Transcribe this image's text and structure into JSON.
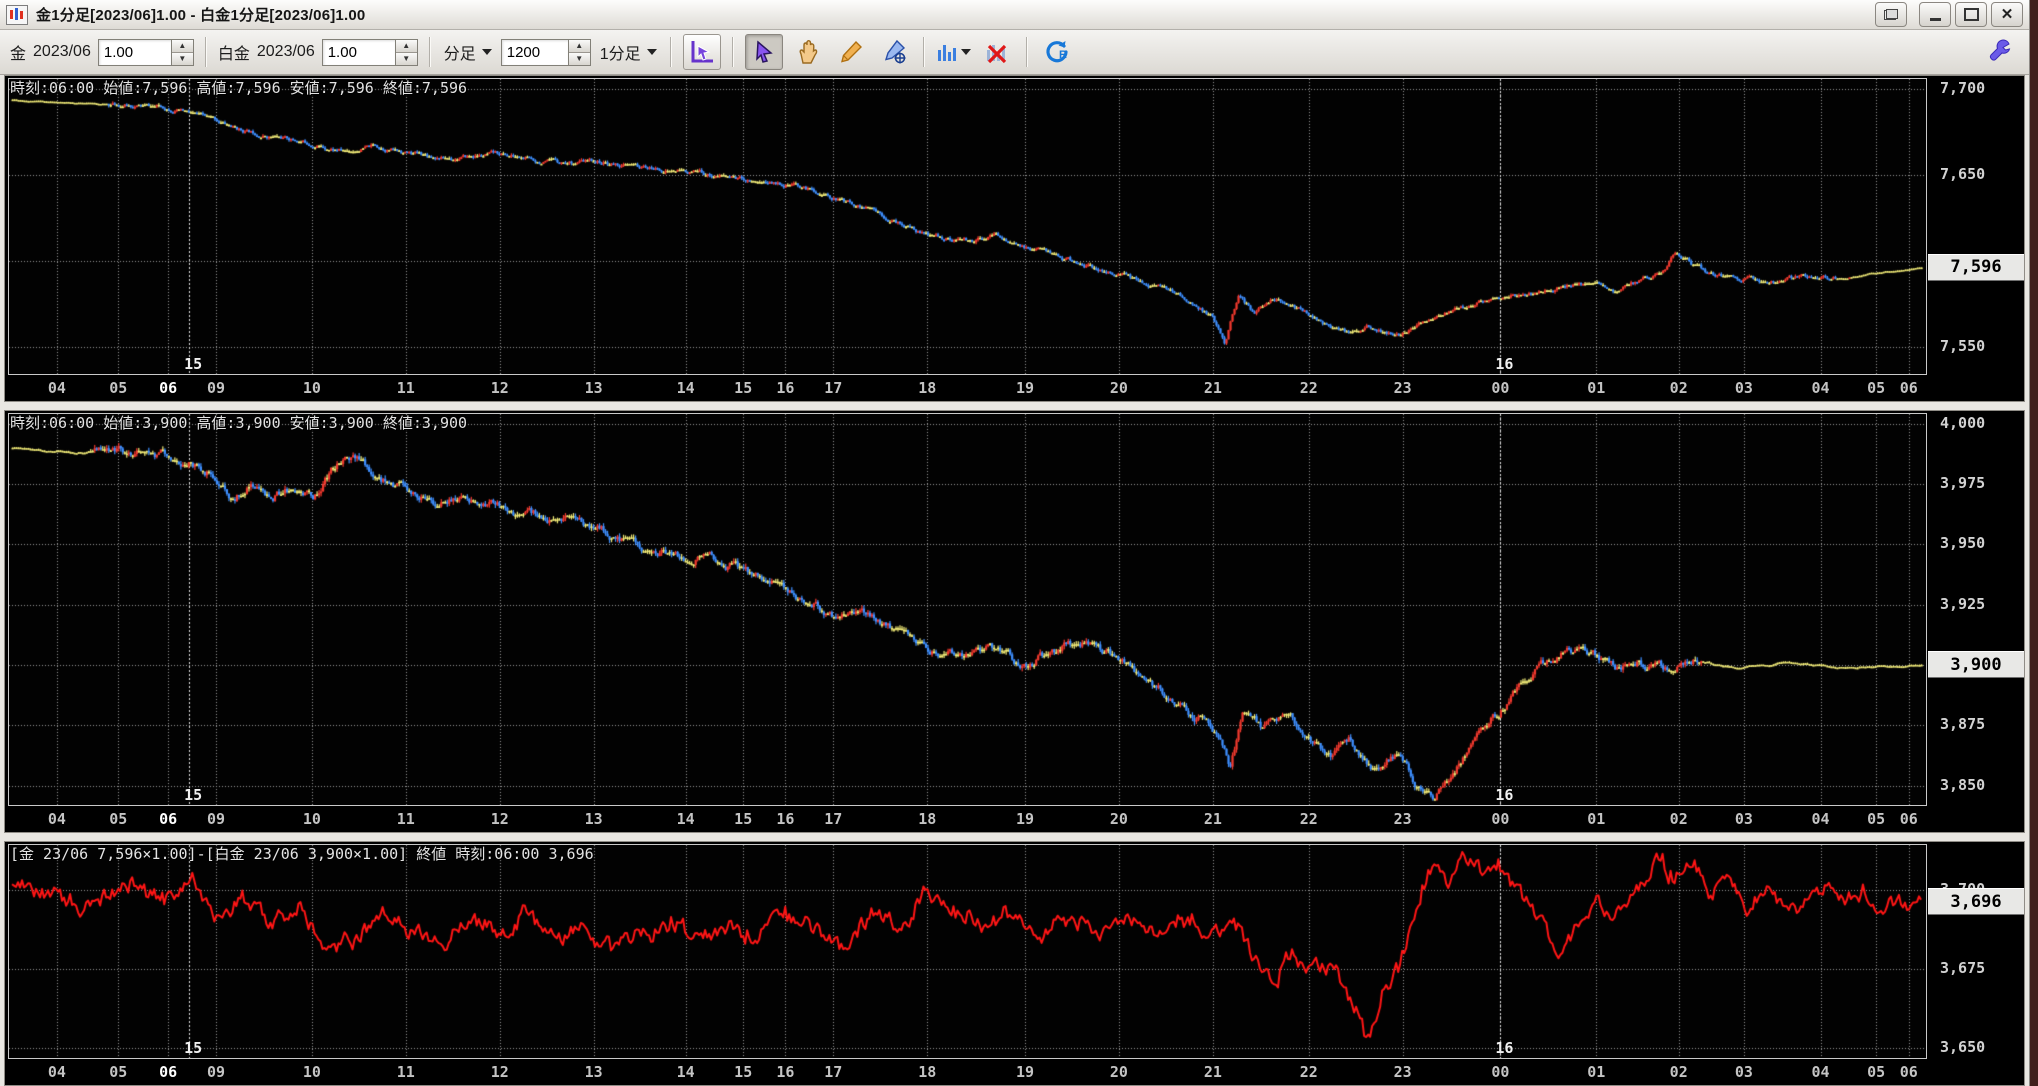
{
  "window": {
    "title": "金1分足[2023/06]1.00 - 白金1分足[2023/06]1.00",
    "buttons": {
      "cascade": "new-window",
      "minimize": "minimize",
      "maximize": "maximize",
      "close": "close"
    }
  },
  "toolbar": {
    "gold_label": "金",
    "gold_month": "2023/06",
    "gold_multiplier": "1.00",
    "platinum_label": "白金",
    "platinum_month": "2023/06",
    "platinum_multiplier": "1.00",
    "bar_type_label": "分足",
    "bar_count": "1200",
    "timeframe_label": "1分足",
    "tools": [
      "axis-cursor",
      "select-cursor",
      "pan-hand",
      "pencil-draw",
      "pen-target",
      "chart-style",
      "clear-chart",
      "reload"
    ],
    "accent_purple": "#6633cc",
    "accent_blue": "#2277dd",
    "accent_orange": "#e8a33c",
    "accent_red": "#e02020"
  },
  "chart_data": [
    {
      "type": "candlestick",
      "symbol": "金 2023/06",
      "info": "時刻:06:00 始値:7,596 高値:7,596 安値:7,596 終値:7,596",
      "open": 7596,
      "high": 7596,
      "low": 7596,
      "close": 7596,
      "price_label": "7,596",
      "price": 7596,
      "ylim": [
        7534,
        7706
      ],
      "yticks": [
        7700,
        7650,
        7600,
        7550
      ],
      "volatility": 2.4,
      "quiet": [
        [
          0,
          0.05
        ],
        [
          0.955,
          1.0
        ]
      ],
      "anchors": [
        [
          0.0,
          7694
        ],
        [
          0.03,
          7692
        ],
        [
          0.06,
          7691
        ],
        [
          0.083,
          7689
        ],
        [
          0.095,
          7685
        ],
        [
          0.108,
          7681
        ],
        [
          0.12,
          7676
        ],
        [
          0.14,
          7672
        ],
        [
          0.158,
          7668
        ],
        [
          0.175,
          7664
        ],
        [
          0.19,
          7667
        ],
        [
          0.207,
          7663
        ],
        [
          0.23,
          7660
        ],
        [
          0.256,
          7662
        ],
        [
          0.28,
          7657
        ],
        [
          0.305,
          7658
        ],
        [
          0.33,
          7654
        ],
        [
          0.353,
          7652
        ],
        [
          0.383,
          7648
        ],
        [
          0.405,
          7645
        ],
        [
          0.42,
          7641
        ],
        [
          0.43,
          7637
        ],
        [
          0.45,
          7630
        ],
        [
          0.465,
          7622
        ],
        [
          0.479,
          7615
        ],
        [
          0.5,
          7611
        ],
        [
          0.515,
          7615
        ],
        [
          0.53,
          7607
        ],
        [
          0.545,
          7604
        ],
        [
          0.56,
          7598
        ],
        [
          0.579,
          7592
        ],
        [
          0.6,
          7585
        ],
        [
          0.615,
          7577
        ],
        [
          0.628,
          7568
        ],
        [
          0.635,
          7552
        ],
        [
          0.642,
          7580
        ],
        [
          0.65,
          7570
        ],
        [
          0.66,
          7577
        ],
        [
          0.678,
          7570
        ],
        [
          0.69,
          7562
        ],
        [
          0.7,
          7558
        ],
        [
          0.71,
          7562
        ],
        [
          0.727,
          7556
        ],
        [
          0.74,
          7565
        ],
        [
          0.755,
          7572
        ],
        [
          0.778,
          7578
        ],
        [
          0.8,
          7583
        ],
        [
          0.82,
          7586
        ],
        [
          0.84,
          7583
        ],
        [
          0.852,
          7588
        ],
        [
          0.865,
          7594
        ],
        [
          0.871,
          7605
        ],
        [
          0.88,
          7598
        ],
        [
          0.89,
          7592
        ],
        [
          0.905,
          7590
        ],
        [
          0.92,
          7588
        ],
        [
          0.945,
          7592
        ],
        [
          0.96,
          7590
        ],
        [
          0.974,
          7593
        ],
        [
          1.0,
          7596
        ]
      ]
    },
    {
      "type": "candlestick",
      "symbol": "白金 2023/06",
      "info": "時刻:06:00 始値:3,900 高値:3,900 安値:3,900 終値:3,900",
      "open": 3900,
      "high": 3900,
      "low": 3900,
      "close": 3900,
      "price_label": "3,900",
      "price": 3900,
      "ylim": [
        3842,
        4004
      ],
      "yticks": [
        4000,
        3975,
        3950,
        3925,
        3900,
        3875,
        3850
      ],
      "volatility": 3.2,
      "quiet": [
        [
          0,
          0.04
        ],
        [
          0.885,
          1.0
        ]
      ],
      "anchors": [
        [
          0.0,
          3990
        ],
        [
          0.03,
          3988
        ],
        [
          0.06,
          3989
        ],
        [
          0.083,
          3987
        ],
        [
          0.095,
          3984
        ],
        [
          0.108,
          3978
        ],
        [
          0.115,
          3968
        ],
        [
          0.125,
          3975
        ],
        [
          0.135,
          3970
        ],
        [
          0.15,
          3974
        ],
        [
          0.158,
          3971
        ],
        [
          0.17,
          3983
        ],
        [
          0.18,
          3985
        ],
        [
          0.19,
          3978
        ],
        [
          0.207,
          3972
        ],
        [
          0.22,
          3968
        ],
        [
          0.235,
          3970
        ],
        [
          0.256,
          3965
        ],
        [
          0.27,
          3962
        ],
        [
          0.29,
          3960
        ],
        [
          0.305,
          3957
        ],
        [
          0.32,
          3952
        ],
        [
          0.335,
          3948
        ],
        [
          0.353,
          3944
        ],
        [
          0.365,
          3946
        ],
        [
          0.383,
          3940
        ],
        [
          0.395,
          3935
        ],
        [
          0.405,
          3930
        ],
        [
          0.42,
          3925
        ],
        [
          0.43,
          3920
        ],
        [
          0.445,
          3924
        ],
        [
          0.46,
          3916
        ],
        [
          0.479,
          3908
        ],
        [
          0.495,
          3904
        ],
        [
          0.51,
          3907
        ],
        [
          0.53,
          3900
        ],
        [
          0.545,
          3906
        ],
        [
          0.56,
          3910
        ],
        [
          0.579,
          3902
        ],
        [
          0.595,
          3893
        ],
        [
          0.61,
          3885
        ],
        [
          0.628,
          3875
        ],
        [
          0.638,
          3858
        ],
        [
          0.645,
          3880
        ],
        [
          0.655,
          3872
        ],
        [
          0.665,
          3880
        ],
        [
          0.678,
          3872
        ],
        [
          0.69,
          3862
        ],
        [
          0.7,
          3868
        ],
        [
          0.712,
          3858
        ],
        [
          0.727,
          3864
        ],
        [
          0.735,
          3852
        ],
        [
          0.745,
          3845
        ],
        [
          0.755,
          3855
        ],
        [
          0.765,
          3868
        ],
        [
          0.778,
          3880
        ],
        [
          0.79,
          3892
        ],
        [
          0.805,
          3902
        ],
        [
          0.815,
          3907
        ],
        [
          0.828,
          3903
        ],
        [
          0.84,
          3898
        ],
        [
          0.852,
          3902
        ],
        [
          0.865,
          3899
        ],
        [
          0.88,
          3902
        ],
        [
          0.905,
          3899
        ],
        [
          0.93,
          3901
        ],
        [
          0.96,
          3899
        ],
        [
          1.0,
          3900
        ]
      ]
    },
    {
      "type": "line",
      "symbol": "金-白金 スプレッド",
      "info": "[金 23/06 7,596×1.00]-[白金 23/06 3,900×1.00] 終値 時刻:06:00 3,696",
      "price_label": "3,696",
      "price": 3696,
      "close": 3696,
      "ylim": [
        3647,
        3714
      ],
      "yticks": [
        3700,
        3675,
        3650
      ],
      "volatility": 4.5,
      "quiet": [],
      "anchors": [
        [
          0.0,
          3702
        ],
        [
          0.02,
          3698
        ],
        [
          0.04,
          3694
        ],
        [
          0.06,
          3703
        ],
        [
          0.08,
          3697
        ],
        [
          0.095,
          3702
        ],
        [
          0.108,
          3690
        ],
        [
          0.12,
          3697
        ],
        [
          0.135,
          3688
        ],
        [
          0.15,
          3694
        ],
        [
          0.165,
          3682
        ],
        [
          0.18,
          3685
        ],
        [
          0.195,
          3692
        ],
        [
          0.21,
          3688
        ],
        [
          0.225,
          3682
        ],
        [
          0.24,
          3690
        ],
        [
          0.256,
          3686
        ],
        [
          0.27,
          3693
        ],
        [
          0.285,
          3684
        ],
        [
          0.3,
          3689
        ],
        [
          0.315,
          3680
        ],
        [
          0.33,
          3687
        ],
        [
          0.345,
          3690
        ],
        [
          0.36,
          3684
        ],
        [
          0.375,
          3690
        ],
        [
          0.39,
          3685
        ],
        [
          0.405,
          3692
        ],
        [
          0.42,
          3687
        ],
        [
          0.435,
          3682
        ],
        [
          0.45,
          3692
        ],
        [
          0.465,
          3688
        ],
        [
          0.479,
          3698
        ],
        [
          0.495,
          3693
        ],
        [
          0.51,
          3688
        ],
        [
          0.525,
          3694
        ],
        [
          0.54,
          3686
        ],
        [
          0.555,
          3692
        ],
        [
          0.57,
          3687
        ],
        [
          0.585,
          3692
        ],
        [
          0.6,
          3686
        ],
        [
          0.615,
          3692
        ],
        [
          0.628,
          3684
        ],
        [
          0.64,
          3692
        ],
        [
          0.65,
          3678
        ],
        [
          0.66,
          3670
        ],
        [
          0.67,
          3680
        ],
        [
          0.678,
          3672
        ],
        [
          0.69,
          3676
        ],
        [
          0.7,
          3668
        ],
        [
          0.71,
          3652
        ],
        [
          0.718,
          3668
        ],
        [
          0.727,
          3675
        ],
        [
          0.735,
          3695
        ],
        [
          0.745,
          3710
        ],
        [
          0.752,
          3700
        ],
        [
          0.76,
          3712
        ],
        [
          0.77,
          3705
        ],
        [
          0.778,
          3710
        ],
        [
          0.788,
          3700
        ],
        [
          0.8,
          3692
        ],
        [
          0.81,
          3678
        ],
        [
          0.82,
          3690
        ],
        [
          0.83,
          3698
        ],
        [
          0.84,
          3692
        ],
        [
          0.852,
          3700
        ],
        [
          0.862,
          3710
        ],
        [
          0.87,
          3705
        ],
        [
          0.88,
          3710
        ],
        [
          0.89,
          3698
        ],
        [
          0.9,
          3703
        ],
        [
          0.91,
          3695
        ],
        [
          0.92,
          3700
        ],
        [
          0.93,
          3692
        ],
        [
          0.94,
          3698
        ],
        [
          0.95,
          3703
        ],
        [
          0.96,
          3696
        ],
        [
          0.97,
          3700
        ],
        [
          0.98,
          3692
        ],
        [
          0.99,
          3697
        ],
        [
          1.0,
          3696
        ]
      ]
    }
  ],
  "axis": {
    "xticks": [
      {
        "label": "04",
        "t": 0.025
      },
      {
        "label": "05",
        "t": 0.057
      },
      {
        "label": "06",
        "t": 0.083,
        "bold": true
      },
      {
        "label": "09",
        "t": 0.108
      },
      {
        "label": "10",
        "t": 0.158
      },
      {
        "label": "11",
        "t": 0.207
      },
      {
        "label": "12",
        "t": 0.256
      },
      {
        "label": "13",
        "t": 0.305
      },
      {
        "label": "14",
        "t": 0.353
      },
      {
        "label": "15",
        "t": 0.383
      },
      {
        "label": "16",
        "t": 0.405
      },
      {
        "label": "17",
        "t": 0.43
      },
      {
        "label": "18",
        "t": 0.479
      },
      {
        "label": "19",
        "t": 0.53
      },
      {
        "label": "20",
        "t": 0.579
      },
      {
        "label": "21",
        "t": 0.628
      },
      {
        "label": "22",
        "t": 0.678
      },
      {
        "label": "23",
        "t": 0.727
      },
      {
        "label": "00",
        "t": 0.778
      },
      {
        "label": "01",
        "t": 0.828
      },
      {
        "label": "02",
        "t": 0.871
      },
      {
        "label": "03",
        "t": 0.905
      },
      {
        "label": "04",
        "t": 0.945
      },
      {
        "label": "05",
        "t": 0.974
      },
      {
        "label": "06",
        "t": 0.991
      }
    ],
    "day_markers": [
      {
        "label": "15",
        "t": 0.094
      },
      {
        "label": "16",
        "t": 0.778
      }
    ]
  },
  "colors": {
    "up": "#f2392e",
    "down": "#3e8fff",
    "flat": "#f2ec78",
    "line": "#ff1515",
    "grid": "#9a9a9a",
    "marker": "#e6e6e6",
    "bg": "#020202",
    "axis_text": "#d2d2d2"
  }
}
